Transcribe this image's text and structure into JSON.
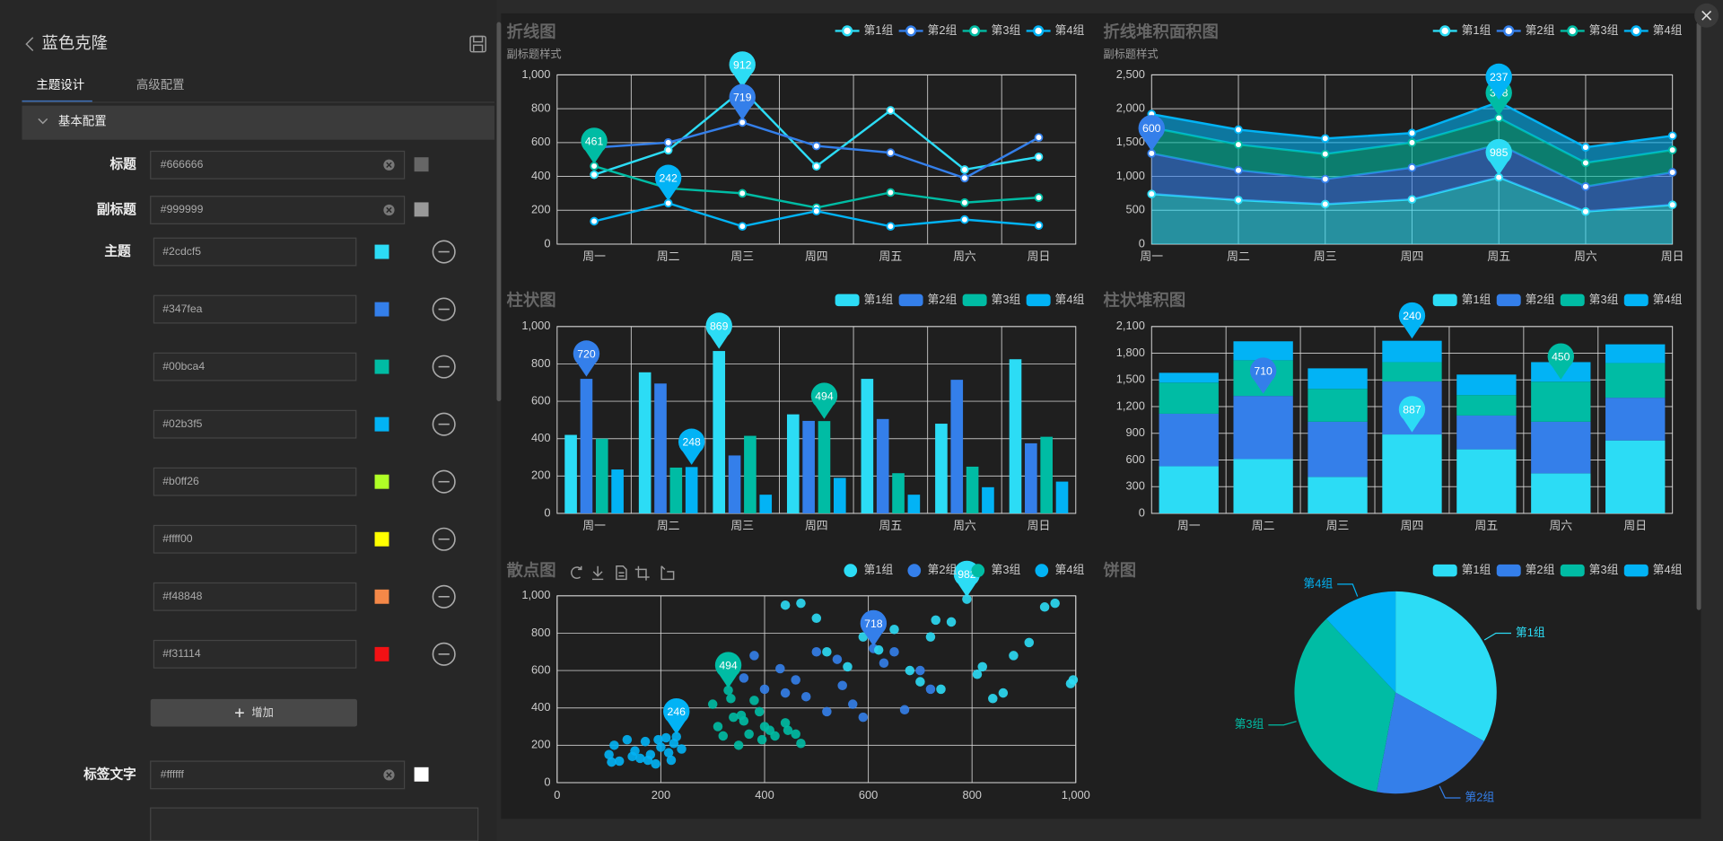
{
  "sidebar": {
    "title": "蓝色克隆",
    "tabs": [
      "主题设计",
      "高级配置"
    ],
    "section": "基本配置",
    "fields": [
      {
        "label": "标题",
        "value": "#666666"
      },
      {
        "label": "副标题",
        "value": "#999999"
      }
    ],
    "theme": {
      "label": "主题",
      "colors": [
        "#2cdcf5",
        "#347fea",
        "#00bca4",
        "#02b3f5",
        "#b0ff26",
        "#ffff00",
        "#f48848",
        "#f31114"
      ]
    },
    "add_button": "增加",
    "label_text": {
      "label": "标签文字",
      "value": "#ffffff"
    }
  },
  "charts": [
    {
      "type": "line",
      "title": "折线图",
      "subtitle": "副标题样式",
      "categories": [
        "周一",
        "周二",
        "周三",
        "周四",
        "周五",
        "周六",
        "周日"
      ],
      "series": [
        {
          "name": "第1组",
          "color": "#2cdcf5",
          "values": [
            410,
            555,
            912,
            460,
            790,
            440,
            515
          ]
        },
        {
          "name": "第2组",
          "color": "#347fea",
          "values": [
            570,
            600,
            719,
            580,
            540,
            390,
            630
          ]
        },
        {
          "name": "第3组",
          "color": "#00bca4",
          "values": [
            461,
            330,
            300,
            215,
            305,
            245,
            275
          ]
        },
        {
          "name": "第4组",
          "color": "#02b3f5",
          "values": [
            135,
            242,
            105,
            195,
            105,
            145,
            110
          ]
        }
      ],
      "ylim": [
        0,
        1000
      ],
      "yticks": [
        0,
        200,
        400,
        600,
        800,
        {
          "value": 1000,
          "label": "1,000"
        }
      ],
      "grid": true,
      "legend": "top-right",
      "boundary_gap": true,
      "mark_max": true
    },
    {
      "type": "area",
      "stacked": true,
      "title": "折线堆积面积图",
      "subtitle": "副标题样式",
      "categories": [
        "周一",
        "周二",
        "周三",
        "周四",
        "周五",
        "周六",
        "周日"
      ],
      "series": [
        {
          "name": "第1组",
          "color": "#2cdcf5",
          "values": [
            740,
            650,
            590,
            660,
            985,
            480,
            580
          ]
        },
        {
          "name": "第2组",
          "color": "#347fea",
          "values": [
            600,
            440,
            370,
            470,
            490,
            370,
            480
          ]
        },
        {
          "name": "第3组",
          "color": "#00bca4",
          "values": [
            380,
            380,
            370,
            370,
            388,
            350,
            330
          ]
        },
        {
          "name": "第4组",
          "color": "#02b3f5",
          "values": [
            200,
            220,
            230,
            140,
            237,
            230,
            210
          ]
        }
      ],
      "ylim": [
        0,
        2500
      ],
      "yticks": [
        0,
        500,
        {
          "value": 1000,
          "label": "1,000"
        },
        {
          "value": 1500,
          "label": "1,500"
        },
        {
          "value": 2000,
          "label": "2,000"
        },
        {
          "value": 2500,
          "label": "2,500"
        }
      ],
      "grid": true,
      "legend": "top-right",
      "boundary_gap": false,
      "mark_max": true
    },
    {
      "type": "bar",
      "title": "柱状图",
      "categories": [
        "周一",
        "周二",
        "周三",
        "周四",
        "周五",
        "周六",
        "周日"
      ],
      "series": [
        {
          "name": "第1组",
          "color": "#2cdcf5",
          "values": [
            420,
            755,
            869,
            530,
            720,
            480,
            825
          ]
        },
        {
          "name": "第2组",
          "color": "#347fea",
          "values": [
            720,
            695,
            310,
            495,
            505,
            715,
            375
          ]
        },
        {
          "name": "第3组",
          "color": "#00bca4",
          "values": [
            400,
            245,
            415,
            494,
            215,
            250,
            410
          ]
        },
        {
          "name": "第4组",
          "color": "#02b3f5",
          "values": [
            235,
            248,
            100,
            190,
            100,
            140,
            170
          ]
        }
      ],
      "ylim": [
        0,
        1000
      ],
      "yticks": [
        0,
        200,
        400,
        600,
        800,
        {
          "value": 1000,
          "label": "1,000"
        }
      ],
      "grid": true,
      "legend": "top-right",
      "boundary_gap": true,
      "mark_max": true
    },
    {
      "type": "bar",
      "stacked": true,
      "title": "柱状堆积图",
      "categories": [
        "周一",
        "周二",
        "周三",
        "周四",
        "周五",
        "周六",
        "周日"
      ],
      "series": [
        {
          "name": "第1组",
          "color": "#2cdcf5",
          "values": [
            530,
            610,
            410,
            887,
            720,
            450,
            820
          ]
        },
        {
          "name": "第2组",
          "color": "#347fea",
          "values": [
            590,
            710,
            620,
            595,
            380,
            580,
            480
          ]
        },
        {
          "name": "第3组",
          "color": "#00bca4",
          "values": [
            350,
            401,
            370,
            218,
            230,
            450,
            390
          ]
        },
        {
          "name": "第4组",
          "color": "#02b3f5",
          "values": [
            110,
            213,
            230,
            240,
            230,
            220,
            210
          ]
        }
      ],
      "ylim": [
        0,
        2100
      ],
      "yticks": [
        0,
        300,
        600,
        900,
        {
          "value": 1200,
          "label": "1,200"
        },
        {
          "value": 1500,
          "label": "1,500"
        },
        {
          "value": 1800,
          "label": "1,800"
        },
        {
          "value": 2100,
          "label": "2,100"
        }
      ],
      "grid": true,
      "legend": "top-right",
      "boundary_gap": true,
      "mark_max": true
    },
    {
      "type": "scatter",
      "title": "散点图",
      "series": [
        {
          "name": "第1组",
          "color": "#2cdcf5",
          "x": [
            440,
            470,
            500,
            520,
            560,
            590,
            620,
            650,
            680,
            700,
            720,
            740,
            760,
            790,
            810,
            840,
            860,
            880,
            910,
            940,
            960,
            990,
            995,
            820,
            730
          ],
          "values": [
            950,
            960,
            880,
            700,
            620,
            780,
            710,
            820,
            600,
            540,
            780,
            500,
            860,
            982,
            580,
            450,
            480,
            680,
            750,
            940,
            960,
            530,
            550,
            620,
            870
          ]
        },
        {
          "name": "第2组",
          "color": "#347fea",
          "x": [
            330,
            360,
            380,
            400,
            430,
            460,
            480,
            500,
            520,
            550,
            570,
            590,
            610,
            630,
            650,
            670,
            700,
            720,
            540,
            440
          ],
          "values": [
            640,
            560,
            680,
            500,
            610,
            550,
            460,
            700,
            380,
            520,
            420,
            350,
            718,
            640,
            700,
            390,
            600,
            500,
            660,
            480
          ]
        },
        {
          "name": "第3组",
          "color": "#00bca4",
          "x": [
            300,
            310,
            320,
            330,
            340,
            350,
            360,
            370,
            380,
            390,
            400,
            410,
            420,
            440,
            460,
            470,
            355,
            395,
            335,
            445
          ],
          "values": [
            420,
            300,
            250,
            494,
            350,
            200,
            330,
            260,
            440,
            380,
            300,
            280,
            250,
            320,
            260,
            210,
            360,
            230,
            450,
            280
          ]
        },
        {
          "name": "第4组",
          "color": "#02b3f5",
          "x": [
            100,
            110,
            120,
            135,
            150,
            160,
            170,
            180,
            190,
            200,
            210,
            215,
            220,
            225,
            230,
            240,
            105,
            145,
            195,
            175
          ],
          "values": [
            150,
            200,
            115,
            230,
            170,
            130,
            220,
            150,
            100,
            190,
            240,
            160,
            120,
            210,
            246,
            180,
            110,
            140,
            230,
            120
          ]
        }
      ],
      "xlim": [
        0,
        1000
      ],
      "xticks": [
        0,
        200,
        400,
        600,
        800,
        {
          "value": 1000,
          "label": "1,000"
        }
      ],
      "ylim": [
        0,
        1000
      ],
      "yticks": [
        0,
        200,
        400,
        600,
        800,
        {
          "value": 1000,
          "label": "1,000"
        }
      ],
      "grid": true,
      "legend": "top-right",
      "mark_max": true
    },
    {
      "type": "pie",
      "title": "饼图",
      "categories": [
        "第1组",
        "第2组",
        "第3组",
        "第4组"
      ],
      "values": [
        33,
        20,
        35,
        12
      ],
      "colors": [
        "#2cdcf5",
        "#347fea",
        "#00bca4",
        "#02b3f5"
      ],
      "legend": "top-right"
    }
  ]
}
